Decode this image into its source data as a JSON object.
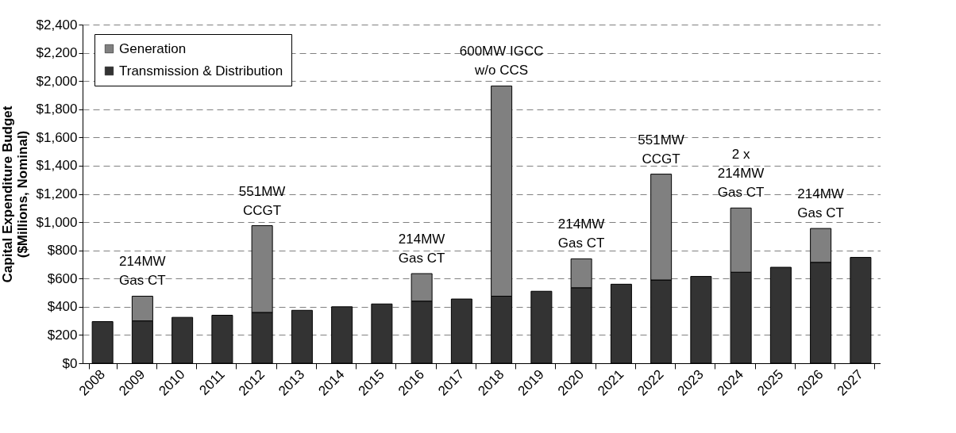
{
  "chart_data": {
    "type": "bar",
    "stacked": true,
    "ylabel": "Capital Expenditure Budget ($Millions, Nominal)",
    "categories": [
      "2008",
      "2009",
      "2010",
      "2011",
      "2012",
      "2013",
      "2014",
      "2015",
      "2016",
      "2017",
      "2018",
      "2019",
      "2020",
      "2021",
      "2022",
      "2023",
      "2024",
      "2025",
      "2026",
      "2027"
    ],
    "series": [
      {
        "name": "Transmission & Distribution",
        "color": "#333333",
        "values": [
          295,
          300,
          325,
          340,
          360,
          375,
          400,
          420,
          440,
          455,
          475,
          510,
          535,
          560,
          590,
          615,
          645,
          680,
          715,
          750
        ]
      },
      {
        "name": "Generation",
        "color": "#808080",
        "values": [
          null,
          175,
          null,
          null,
          615,
          null,
          null,
          null,
          195,
          null,
          1490,
          null,
          205,
          null,
          750,
          null,
          455,
          null,
          240,
          null
        ]
      }
    ],
    "ylim": [
      0,
      2400
    ],
    "yticks": [
      {
        "value": 0,
        "label": "$0"
      },
      {
        "value": 200,
        "label": "$200"
      },
      {
        "value": 400,
        "label": "$400"
      },
      {
        "value": 600,
        "label": "$600"
      },
      {
        "value": 800,
        "label": "$800"
      },
      {
        "value": 1000,
        "label": "$1,000"
      },
      {
        "value": 1200,
        "label": "$1,200"
      },
      {
        "value": 1400,
        "label": "$1,400"
      },
      {
        "value": 1600,
        "label": "$1,600"
      },
      {
        "value": 1800,
        "label": "$1,800"
      },
      {
        "value": 2000,
        "label": "$2,000"
      },
      {
        "value": 2200,
        "label": "$2,200"
      },
      {
        "value": 2400,
        "label": "$2,400"
      }
    ],
    "grid": "y",
    "legend": "top left",
    "annotations": [
      {
        "text": "214MW\nGas CT",
        "x": "2009",
        "y": 475
      },
      {
        "text": "551MW\nCCGT",
        "x": "2012",
        "y": 975
      },
      {
        "text": "214MW\nGas CT",
        "x": "2016",
        "y": 635
      },
      {
        "text": "600MW IGCC\nw/o CCS",
        "x": "2018",
        "y": 1965
      },
      {
        "text": "214MW\nGas CT",
        "x": "2020",
        "y": 740
      },
      {
        "text": "551MW\nCCGT",
        "x": "2022",
        "y": 1340
      },
      {
        "text": "2 x\n214MW\nGas CT",
        "x": "2024",
        "y": 1100
      },
      {
        "text": "214MW\nGas CT",
        "x": "2026",
        "y": 955
      }
    ]
  }
}
